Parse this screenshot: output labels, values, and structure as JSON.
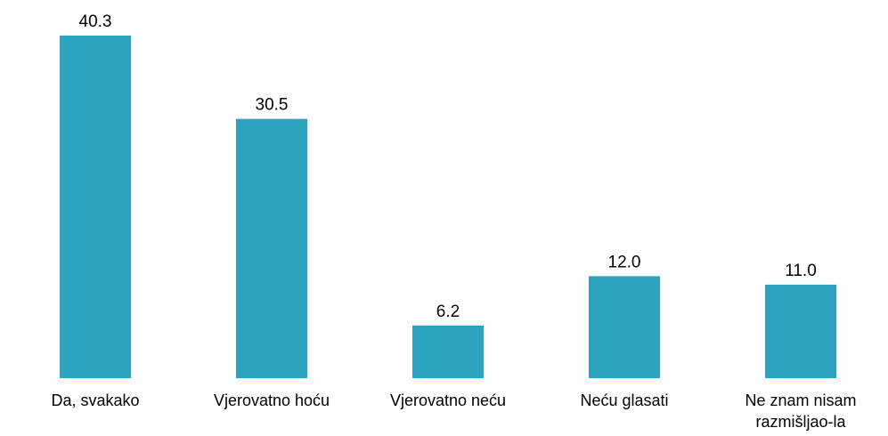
{
  "chart_data": {
    "type": "bar",
    "categories": [
      "Da, svakako",
      "Vjerovatno hoću",
      "Vjerovatno neću",
      "Neću glasati",
      "Ne znam nisam razmišljao-la"
    ],
    "values": [
      40.3,
      30.5,
      6.2,
      12.0,
      11.0
    ],
    "value_labels": [
      "40.3",
      "30.5",
      "6.2",
      "12.0",
      "11.0"
    ],
    "color": "#2ca4bf"
  }
}
